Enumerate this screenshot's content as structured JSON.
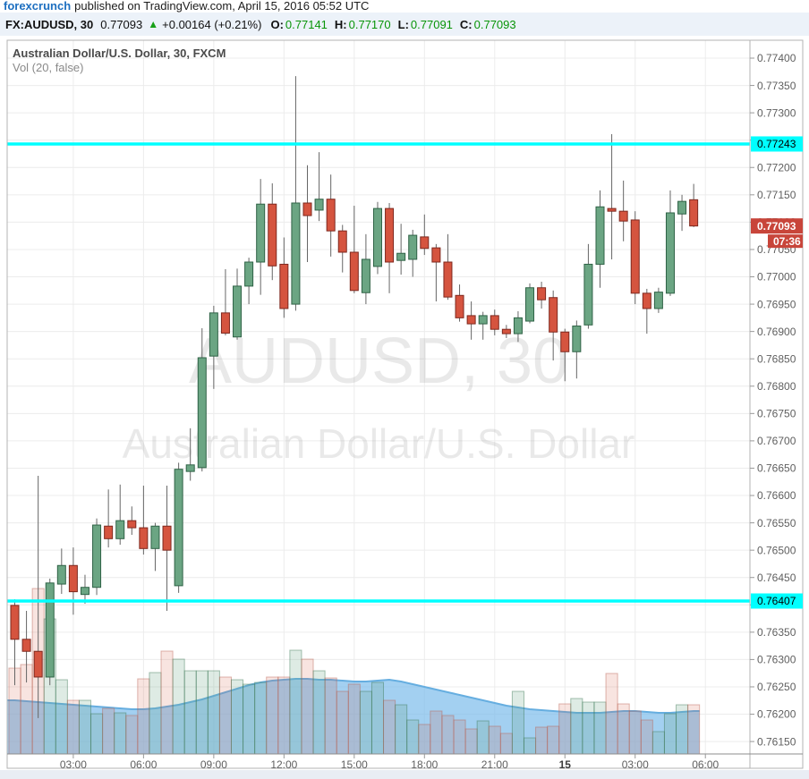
{
  "publish_bar": {
    "brand": "forexcrunch",
    "text": "published on TradingView.com, April 15, 2016 05:52 UTC"
  },
  "quote_bar": {
    "symbol": "FX:AUDUSD, 30",
    "price": "0.77093",
    "arrow": "▲",
    "change": "+0.00164 (+0.21%)",
    "o_label": "O:",
    "o": "0.77141",
    "h_label": "H:",
    "h": "0.77170",
    "l_label": "L:",
    "l": "0.77091",
    "c_label": "C:",
    "c": "0.77093"
  },
  "legend": {
    "title": "Australian Dollar/U.S. Dollar, 30, FXCM",
    "indicator": "Vol (20, false)"
  },
  "watermark": {
    "line1": "AUDUSD, 30",
    "line2": "Australian Dollar/U.S. Dollar"
  },
  "colors": {
    "up_fill": "#6ba583",
    "up_border": "#2f6246",
    "down_fill": "#d5543f",
    "down_border": "#7e281e",
    "wick": "#666666",
    "level_line": "#00ffff",
    "last_price_bg": "#c8453a",
    "grid": "#ececec",
    "axis_text": "#5f5f5f",
    "border": "#b3b3b3",
    "vol_ma_fill": "rgba(120,185,235,0.68)",
    "vol_ma_line": "#66aee0",
    "vol_up_fill": "rgba(107,165,131,0.22)",
    "vol_up_border": "rgba(60,120,85,0.45)",
    "vol_down_fill": "rgba(213,84,63,0.16)",
    "vol_down_border": "rgba(185,95,80,0.45)"
  },
  "chart_data": {
    "type": "candlestick+volume",
    "title": "Australian Dollar/U.S. Dollar, 30, FXCM",
    "symbol": "AUDUSD",
    "interval": "30",
    "y_axis": {
      "min": 0.7615,
      "max": 0.774,
      "tick_step": 0.0005,
      "decimals": 5
    },
    "x_ticks": [
      {
        "i": 5,
        "label": "03:00",
        "bold": false
      },
      {
        "i": 11,
        "label": "06:00",
        "bold": false
      },
      {
        "i": 17,
        "label": "09:00",
        "bold": false
      },
      {
        "i": 23,
        "label": "12:00",
        "bold": false
      },
      {
        "i": 29,
        "label": "15:00",
        "bold": false
      },
      {
        "i": 35,
        "label": "18:00",
        "bold": false
      },
      {
        "i": 41,
        "label": "21:00",
        "bold": false
      },
      {
        "i": 47,
        "label": "15",
        "bold": true
      },
      {
        "i": 53,
        "label": "03:00",
        "bold": false
      },
      {
        "i": 59,
        "label": "06:00",
        "bold": false
      }
    ],
    "levels": [
      0.77243,
      0.76407
    ],
    "last_price": {
      "value": "0.77093",
      "countdown": "07:36"
    },
    "candles": [
      [
        0.76399,
        0.7641,
        0.76253,
        0.76337
      ],
      [
        0.76337,
        0.76389,
        0.76258,
        0.76315
      ],
      [
        0.76315,
        0.76636,
        0.76193,
        0.76268
      ],
      [
        0.76268,
        0.76448,
        0.76253,
        0.7644
      ],
      [
        0.76438,
        0.76503,
        0.7642,
        0.76472
      ],
      [
        0.76472,
        0.76505,
        0.76382,
        0.76424
      ],
      [
        0.76419,
        0.76455,
        0.76402,
        0.76432
      ],
      [
        0.76432,
        0.76558,
        0.76418,
        0.76546
      ],
      [
        0.76544,
        0.76611,
        0.76505,
        0.76521
      ],
      [
        0.76521,
        0.7662,
        0.7651,
        0.76554
      ],
      [
        0.76554,
        0.7658,
        0.76528,
        0.76541
      ],
      [
        0.76541,
        0.76618,
        0.76492,
        0.76503
      ],
      [
        0.76503,
        0.7655,
        0.76462,
        0.76544
      ],
      [
        0.76544,
        0.76618,
        0.76389,
        0.765
      ],
      [
        0.76435,
        0.7666,
        0.76422,
        0.76648
      ],
      [
        0.76644,
        0.76723,
        0.76627,
        0.76656
      ],
      [
        0.76651,
        0.76906,
        0.76644,
        0.76852
      ],
      [
        0.76855,
        0.76947,
        0.76795,
        0.76934
      ],
      [
        0.76934,
        0.77014,
        0.76893,
        0.76897
      ],
      [
        0.7689,
        0.77015,
        0.76885,
        0.76983
      ],
      [
        0.76983,
        0.77035,
        0.7695,
        0.77027
      ],
      [
        0.77027,
        0.77179,
        0.76967,
        0.77133
      ],
      [
        0.77133,
        0.77171,
        0.76994,
        0.7702
      ],
      [
        0.77023,
        0.77072,
        0.76925,
        0.76942
      ],
      [
        0.7695,
        0.77367,
        0.76938,
        0.77135
      ],
      [
        0.77135,
        0.77204,
        0.77027,
        0.77112
      ],
      [
        0.77122,
        0.77228,
        0.77102,
        0.77142
      ],
      [
        0.77142,
        0.77187,
        0.77037,
        0.77084
      ],
      [
        0.77084,
        0.77095,
        0.77008,
        0.77045
      ],
      [
        0.77045,
        0.7713,
        0.7697,
        0.76975
      ],
      [
        0.76971,
        0.77078,
        0.7695,
        0.77032
      ],
      [
        0.77019,
        0.77137,
        0.77005,
        0.77125
      ],
      [
        0.77125,
        0.77135,
        0.7697,
        0.77027
      ],
      [
        0.7703,
        0.77097,
        0.77004,
        0.77043
      ],
      [
        0.77032,
        0.77086,
        0.77,
        0.77076
      ],
      [
        0.77073,
        0.77114,
        0.7704,
        0.77052
      ],
      [
        0.77053,
        0.7706,
        0.76955,
        0.77027
      ],
      [
        0.77027,
        0.77078,
        0.76958,
        0.76963
      ],
      [
        0.76966,
        0.76986,
        0.76918,
        0.76925
      ],
      [
        0.76929,
        0.76955,
        0.76885,
        0.76914
      ],
      [
        0.76914,
        0.76936,
        0.76885,
        0.76929
      ],
      [
        0.76929,
        0.7694,
        0.76893,
        0.76904
      ],
      [
        0.76904,
        0.76912,
        0.76888,
        0.76896
      ],
      [
        0.76896,
        0.76937,
        0.76881,
        0.76925
      ],
      [
        0.76919,
        0.76988,
        0.76915,
        0.7698
      ],
      [
        0.7698,
        0.76991,
        0.76942,
        0.76958
      ],
      [
        0.76962,
        0.76975,
        0.76847,
        0.76899
      ],
      [
        0.76899,
        0.76905,
        0.76809,
        0.76863
      ],
      [
        0.76863,
        0.7692,
        0.76814,
        0.7691
      ],
      [
        0.76912,
        0.7706,
        0.76905,
        0.77023
      ],
      [
        0.77023,
        0.77158,
        0.7698,
        0.77128
      ],
      [
        0.77125,
        0.77261,
        0.77032,
        0.7712
      ],
      [
        0.7712,
        0.77176,
        0.77065,
        0.77102
      ],
      [
        0.77104,
        0.7712,
        0.7695,
        0.7697
      ],
      [
        0.7697,
        0.76978,
        0.76896,
        0.76942
      ],
      [
        0.76942,
        0.7698,
        0.76934,
        0.76972
      ],
      [
        0.7697,
        0.77158,
        0.76965,
        0.77117
      ],
      [
        0.77115,
        0.7715,
        0.77084,
        0.77138
      ],
      [
        0.77141,
        0.7717,
        0.77091,
        0.77093
      ]
    ],
    "volume": {
      "heights": [
        96,
        100,
        185,
        151,
        83,
        60,
        60,
        45,
        51,
        46,
        43,
        84,
        91,
        115,
        106,
        93,
        93,
        93,
        86,
        83,
        78,
        80,
        86,
        86,
        116,
        106,
        93,
        85,
        70,
        78,
        70,
        80,
        60,
        55,
        38,
        33,
        48,
        43,
        38,
        28,
        37,
        31,
        23,
        70,
        18,
        30,
        31,
        56,
        62,
        58,
        58,
        90,
        56,
        48,
        38,
        25,
        45,
        55,
        55
      ],
      "ma_heights": [
        60,
        59,
        58,
        57,
        56,
        55,
        54,
        53,
        52,
        51,
        50,
        50,
        51,
        53,
        55,
        58,
        61,
        65,
        69,
        73,
        77,
        80,
        82,
        83,
        84,
        84,
        83,
        83,
        82,
        81,
        81,
        82,
        83,
        81,
        78,
        75,
        72,
        69,
        66,
        63,
        60,
        57,
        54,
        52,
        50,
        49,
        48,
        47,
        46,
        46,
        46,
        47,
        48,
        48,
        47,
        46,
        46,
        47,
        48
      ]
    }
  }
}
